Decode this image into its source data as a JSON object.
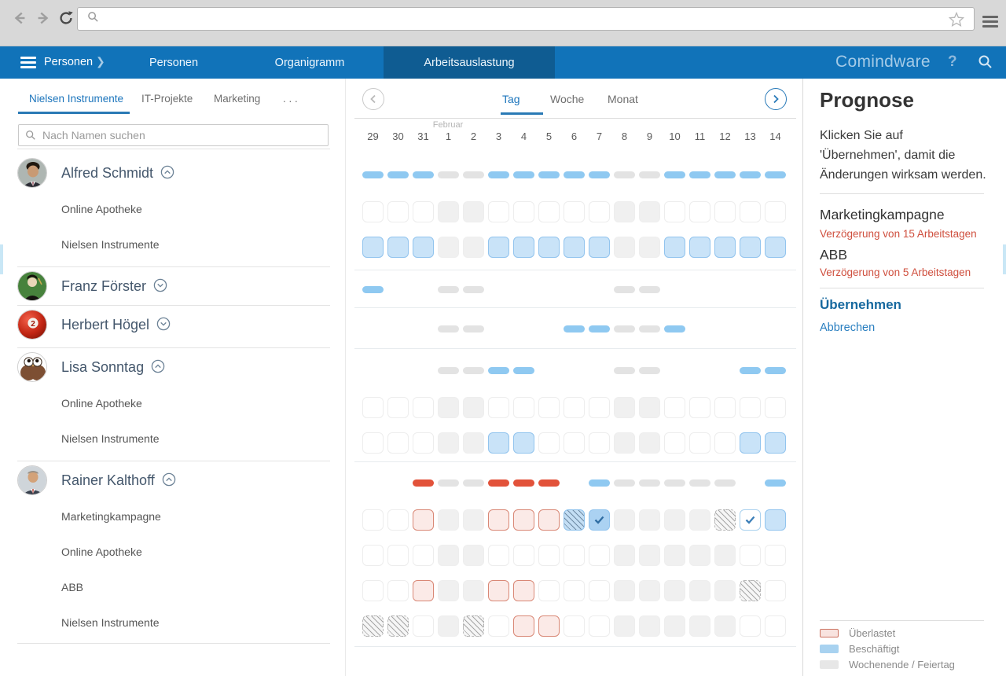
{
  "browser": {
    "address_placeholder": "",
    "icons": [
      "back-icon",
      "forward-icon",
      "reload-icon",
      "search-icon",
      "star-icon",
      "menu-icon"
    ]
  },
  "navbar": {
    "brand": "Comindware",
    "breadcrumb": "Personen",
    "tabs": [
      {
        "label": "Personen",
        "active": false
      },
      {
        "label": "Organigramm",
        "active": false
      },
      {
        "label": "Arbeitsauslastung",
        "active": true
      }
    ],
    "colors": {
      "bar": "#1173b9",
      "active_tab": "#0f5c92"
    }
  },
  "sidebar": {
    "tabs": [
      {
        "label": "Nielsen Instrumente",
        "active": true
      },
      {
        "label": "IT-Projekte",
        "active": false
      },
      {
        "label": "Marketing",
        "active": false
      },
      {
        "label": ". . .",
        "active": false
      }
    ],
    "search_placeholder": "Nach Namen suchen",
    "people": [
      {
        "name": "Alfred Schmidt",
        "avatar": "man-dark-hair",
        "expanded": true,
        "projects": [
          "Online Apotheke",
          "Nielsen Instrumente"
        ]
      },
      {
        "name": "Franz Förster",
        "avatar": "green-cartoon-man",
        "expanded": false,
        "projects": []
      },
      {
        "name": "Herbert Högel",
        "avatar": "red-billiard-ball",
        "expanded": false,
        "projects": []
      },
      {
        "name": "Lisa Sonntag",
        "avatar": "brown-owl",
        "expanded": true,
        "projects": [
          "Online Apotheke",
          "Nielsen Instrumente"
        ]
      },
      {
        "name": "Rainer Kalthoff",
        "avatar": "man-red-tie",
        "expanded": true,
        "projects": [
          "Marketingkampagne",
          "Online Apotheke",
          "ABB",
          "Nielsen Instrumente"
        ]
      }
    ]
  },
  "calendar": {
    "view_tabs": [
      {
        "label": "Tag",
        "active": true
      },
      {
        "label": "Woche",
        "active": false
      },
      {
        "label": "Monat",
        "active": false
      }
    ],
    "month_label": "Februar",
    "month_label_day_index": 3,
    "days": [
      "29",
      "30",
      "31",
      "1",
      "2",
      "3",
      "4",
      "5",
      "6",
      "7",
      "8",
      "9",
      "10",
      "11",
      "12",
      "13",
      "14"
    ],
    "state_key": {
      "-": "leer",
      "e": "frei",
      "w": "Wochenende / Feiertag",
      "b": "Beschäftigt",
      "r": "Überlastet (Pille)",
      "o": "Überlastet",
      "x": "beschäftigt schraffiert",
      "h": "schraffiert",
      "c": "Haken auf blau",
      "k": "Haken auf weiß"
    },
    "rows": [
      {
        "id": "a_sum",
        "person": "Alfred Schmidt",
        "project": null,
        "kind": "pills",
        "states": "bbbwwbbbbbwwbbbbb"
      },
      {
        "id": "a_oa",
        "person": "Alfred Schmidt",
        "project": "Online Apotheke",
        "kind": "cells",
        "states": "eeewweeeeewweeeee"
      },
      {
        "id": "a_ni",
        "person": "Alfred Schmidt",
        "project": "Nielsen Instrumente",
        "kind": "cells",
        "states": "bbbwwbbbbbwwbbbbb"
      },
      {
        "id": "f_sum",
        "person": "Franz Förster",
        "project": null,
        "kind": "pills",
        "states": "b--ww-----ww-----"
      },
      {
        "id": "h_sum",
        "person": "Herbert Högel",
        "project": null,
        "kind": "pills",
        "states": "---ww---bbwwb----"
      },
      {
        "id": "l_sum",
        "person": "Lisa Sonntag",
        "project": null,
        "kind": "pills",
        "states": "---wwbb---ww---bb"
      },
      {
        "id": "l_oa",
        "person": "Lisa Sonntag",
        "project": "Online Apotheke",
        "kind": "cells",
        "states": "eeewweeeeewweeeee"
      },
      {
        "id": "l_ni",
        "person": "Lisa Sonntag",
        "project": "Nielsen Instrumente",
        "kind": "cells",
        "states": "eeewwbbeeewweeebb"
      },
      {
        "id": "r_sum",
        "person": "Rainer Kalthoff",
        "project": null,
        "kind": "pills",
        "states": "--rwwrrr-bwwwww-b"
      },
      {
        "id": "r_mk",
        "person": "Rainer Kalthoff",
        "project": "Marketingkampagne",
        "kind": "cells",
        "states": "eeowwoooxcwwwwhkb"
      },
      {
        "id": "r_oa",
        "person": "Rainer Kalthoff",
        "project": "Online Apotheke",
        "kind": "cells",
        "states": "eeewweeeeewwwwwee"
      },
      {
        "id": "r_abb",
        "person": "Rainer Kalthoff",
        "project": "ABB",
        "kind": "cells",
        "states": "eeowwooeeewwwwwhe"
      },
      {
        "id": "r_ni",
        "person": "Rainer Kalthoff",
        "project": "Nielsen Instrumente",
        "kind": "cells",
        "states": "hhewheooeewwwwwee"
      }
    ]
  },
  "prognose": {
    "title": "Prognose",
    "hint": "Klicken Sie auf 'Übernehmen', damit die Änderungen wirksam werden.",
    "items": [
      {
        "name": "Marketingkampagne",
        "delay": "Verzögerung von 15 Arbeitstagen"
      },
      {
        "name": "ABB",
        "delay": "Verzögerung von 5 Arbeitstagen"
      }
    ],
    "apply_label": "Übernehmen",
    "cancel_label": "Abbrechen"
  },
  "legend": {
    "items": [
      {
        "label": "Überlastet",
        "type": "overload"
      },
      {
        "label": "Beschäftigt",
        "type": "busy"
      },
      {
        "label": "Wochenende / Feiertag",
        "type": "weekend"
      }
    ]
  },
  "colors": {
    "busy_fill": "#c9e3f8",
    "busy_border": "#92c4ee",
    "overload_fill": "#fbeae7",
    "overload_border": "#d98876",
    "weekend_fill": "#f0f0f0",
    "pill_red": "#e2523a",
    "pill_blue": "#8fc9f1",
    "pill_gray": "#e3e3e3",
    "delay_text": "#cf4f3e",
    "accent_blue": "#1c75bc"
  }
}
